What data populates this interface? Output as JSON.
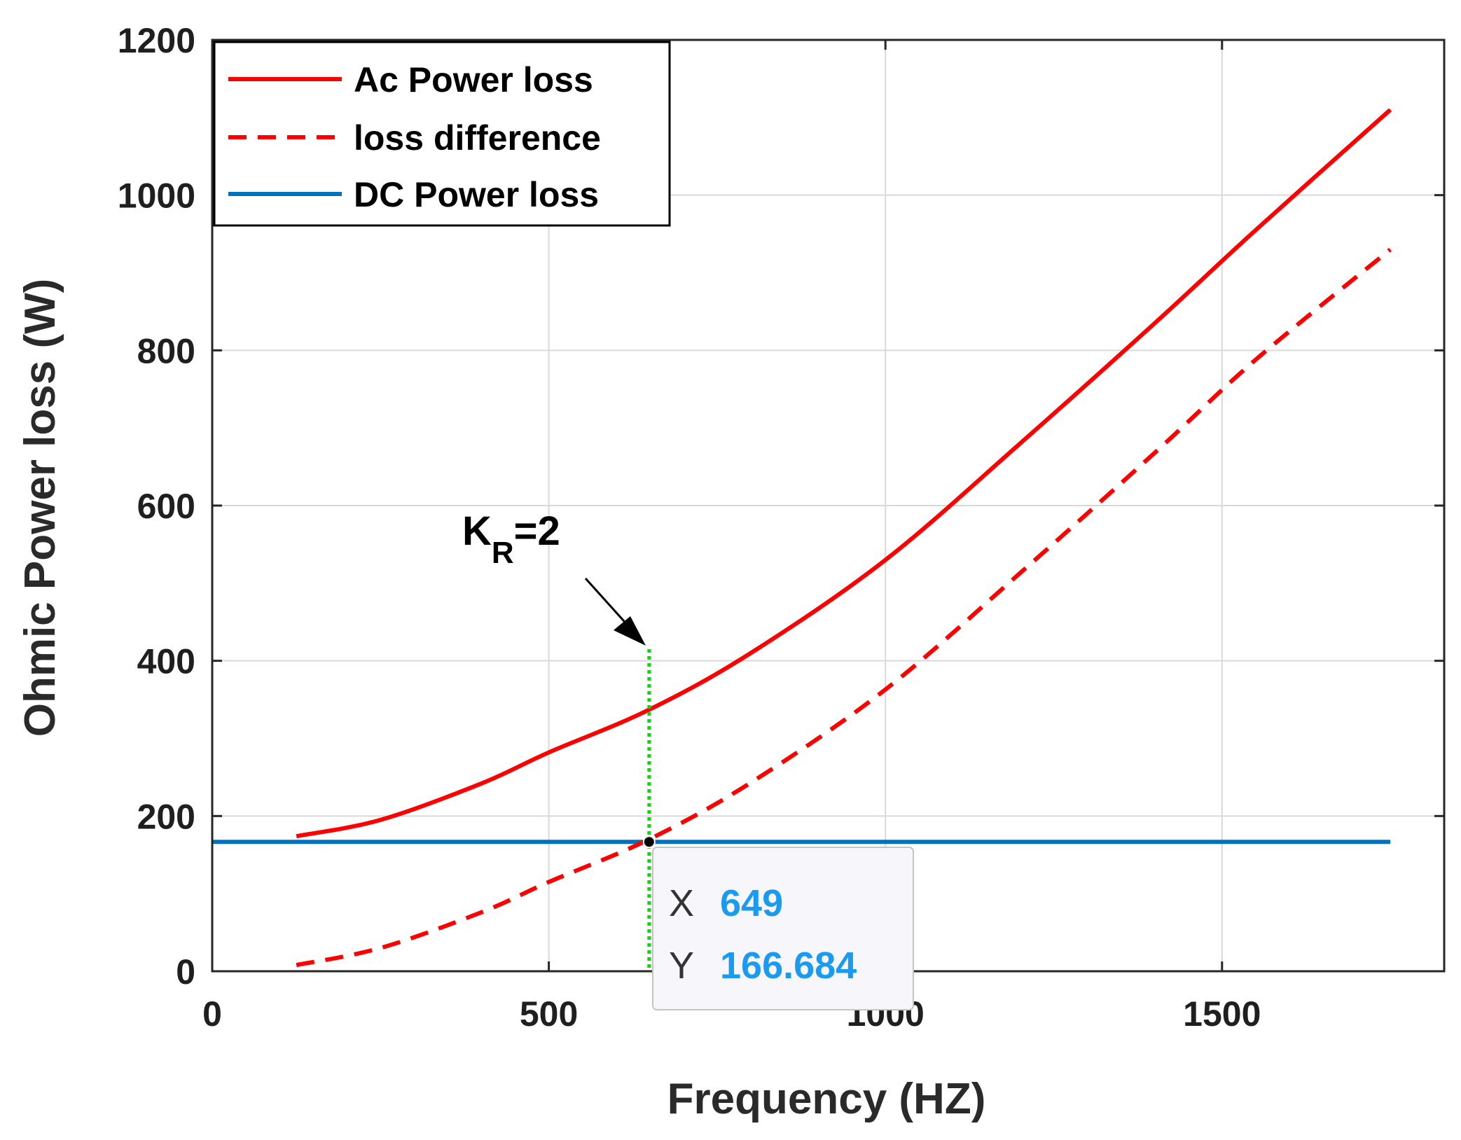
{
  "chart_data": {
    "type": "line",
    "title": "",
    "xlabel": "Frequency (HZ)",
    "ylabel": "Ohmic Power loss (W)",
    "xlim": [
      0,
      1830
    ],
    "ylim": [
      0,
      1200
    ],
    "xticks": [
      0,
      500,
      1000,
      1500
    ],
    "yticks": [
      0,
      200,
      400,
      600,
      800,
      1000,
      1200
    ],
    "grid": true,
    "legend_position": "top-left",
    "series": [
      {
        "name": "Ac Power loss",
        "style": "solid",
        "color": "#ff0000",
        "x": [
          125,
          250,
          400,
          500,
          649,
          800,
          1000,
          1200,
          1400,
          1550,
          1750
        ],
        "y": [
          174,
          195,
          242,
          282,
          337,
          410,
          530,
          680,
          835,
          955,
          1110
        ]
      },
      {
        "name": "loss difference",
        "style": "dashed",
        "color": "#ff0000",
        "x": [
          125,
          250,
          400,
          500,
          649,
          800,
          1000,
          1200,
          1400,
          1550,
          1750
        ],
        "y": [
          8,
          30,
          76,
          115,
          170,
          243,
          363,
          513,
          668,
          788,
          930
        ]
      },
      {
        "name": "DC Power loss",
        "style": "solid",
        "color": "#0072bd",
        "x": [
          0,
          1750
        ],
        "y": [
          166.684,
          166.684
        ]
      }
    ],
    "annotations": {
      "kr_text": "K",
      "kr_sub": "R",
      "kr_eq": "=2",
      "marker_x": 649,
      "marker_top_y": 415,
      "datatip": {
        "x_label": "X",
        "x_value": "649",
        "y_label": "Y",
        "y_value": "166.684",
        "x": 649,
        "y": 166.684
      }
    }
  }
}
